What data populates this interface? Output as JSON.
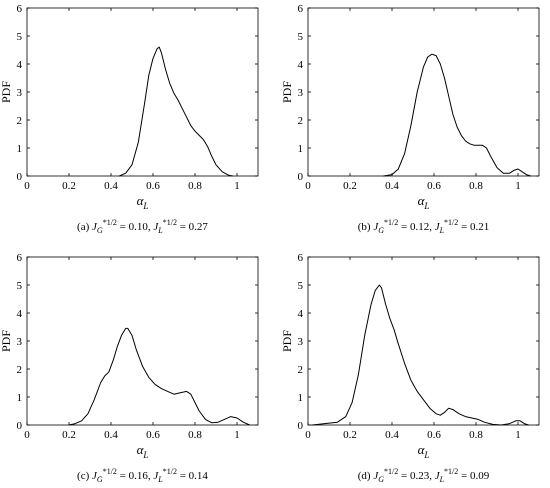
{
  "chart_data": [
    {
      "type": "line",
      "panel": "a",
      "caption": "(a)  J_G^{*1/2} = 0.10, J_L^{*1/2} = 0.27",
      "caption_parts": {
        "label": "(a)",
        "jg_value": "0.10",
        "jl_value": "0.27"
      },
      "xlabel": "α_L",
      "xlabel_main": "α",
      "xlabel_sub": "L",
      "ylabel": "PDF",
      "xlim": [
        0,
        1.1
      ],
      "ylim": [
        0,
        6
      ],
      "xticks": [
        0,
        0.2,
        0.4,
        0.6,
        0.8,
        1
      ],
      "yticks": [
        0,
        1,
        2,
        3,
        4,
        5,
        6
      ],
      "grid": false,
      "series": [
        {
          "x": [
            0.44,
            0.47,
            0.5,
            0.53,
            0.56,
            0.58,
            0.6,
            0.62,
            0.63,
            0.64,
            0.66,
            0.68,
            0.7,
            0.72,
            0.74,
            0.76,
            0.78,
            0.8,
            0.82,
            0.84,
            0.86,
            0.88,
            0.9,
            0.93,
            0.96,
            0.98
          ],
          "values": [
            0.0,
            0.1,
            0.4,
            1.2,
            2.6,
            3.6,
            4.2,
            4.55,
            4.6,
            4.4,
            3.8,
            3.3,
            2.95,
            2.7,
            2.4,
            2.1,
            1.8,
            1.6,
            1.45,
            1.3,
            1.05,
            0.7,
            0.4,
            0.15,
            0.03,
            0.0
          ]
        }
      ]
    },
    {
      "type": "line",
      "panel": "b",
      "caption": "(b)  J_G^{*1/2} = 0.12, J_L^{*1/2} = 0.21",
      "caption_parts": {
        "label": "(b)",
        "jg_value": "0.12",
        "jl_value": "0.21"
      },
      "xlabel": "α_L",
      "xlabel_main": "α",
      "xlabel_sub": "L",
      "ylabel": "PDF",
      "xlim": [
        0,
        1.1
      ],
      "ylim": [
        0,
        6
      ],
      "xticks": [
        0,
        0.2,
        0.4,
        0.6,
        0.8,
        1
      ],
      "yticks": [
        0,
        1,
        2,
        3,
        4,
        5,
        6
      ],
      "grid": false,
      "series": [
        {
          "x": [
            0.36,
            0.4,
            0.43,
            0.46,
            0.49,
            0.52,
            0.55,
            0.57,
            0.59,
            0.61,
            0.63,
            0.65,
            0.67,
            0.69,
            0.71,
            0.73,
            0.75,
            0.77,
            0.79,
            0.81,
            0.83,
            0.85,
            0.87,
            0.9,
            0.93,
            0.96,
            0.98,
            1.0,
            1.02,
            1.04,
            1.06
          ],
          "values": [
            0.0,
            0.05,
            0.25,
            0.8,
            1.8,
            3.0,
            3.9,
            4.25,
            4.35,
            4.3,
            4.0,
            3.5,
            2.85,
            2.2,
            1.75,
            1.45,
            1.25,
            1.15,
            1.1,
            1.1,
            1.1,
            1.0,
            0.7,
            0.3,
            0.1,
            0.1,
            0.2,
            0.25,
            0.15,
            0.05,
            0.0
          ]
        }
      ]
    },
    {
      "type": "line",
      "panel": "c",
      "caption": "(c)  J_G^{*1/2} = 0.16, J_L^{*1/2} = 0.14",
      "caption_parts": {
        "label": "(c)",
        "jg_value": "0.16",
        "jl_value": "0.14"
      },
      "xlabel": "α_L",
      "xlabel_main": "α",
      "xlabel_sub": "L",
      "ylabel": "PDF",
      "xlim": [
        0,
        1.1
      ],
      "ylim": [
        0,
        6
      ],
      "xticks": [
        0,
        0.2,
        0.4,
        0.6,
        0.8,
        1
      ],
      "yticks": [
        0,
        1,
        2,
        3,
        4,
        5,
        6
      ],
      "grid": false,
      "series": [
        {
          "x": [
            0.2,
            0.23,
            0.26,
            0.29,
            0.32,
            0.35,
            0.37,
            0.39,
            0.41,
            0.43,
            0.45,
            0.47,
            0.48,
            0.5,
            0.52,
            0.55,
            0.58,
            0.61,
            0.64,
            0.67,
            0.7,
            0.73,
            0.76,
            0.78,
            0.8,
            0.82,
            0.85,
            0.88,
            0.91,
            0.94,
            0.97,
            1.0,
            1.03,
            1.06
          ],
          "values": [
            0.0,
            0.05,
            0.15,
            0.4,
            0.9,
            1.5,
            1.75,
            1.9,
            2.3,
            2.8,
            3.2,
            3.45,
            3.45,
            3.2,
            2.7,
            2.1,
            1.7,
            1.45,
            1.3,
            1.2,
            1.1,
            1.15,
            1.2,
            1.1,
            0.8,
            0.5,
            0.2,
            0.08,
            0.1,
            0.2,
            0.3,
            0.25,
            0.1,
            0.0
          ]
        }
      ]
    },
    {
      "type": "line",
      "panel": "d",
      "caption": "(d)  J_G^{*1/2} = 0.23, J_L^{*1/2} = 0.09",
      "caption_parts": {
        "label": "(d)",
        "jg_value": "0.23",
        "jl_value": "0.09"
      },
      "xlabel": "α_L",
      "xlabel_main": "α",
      "xlabel_sub": "L",
      "ylabel": "PDF",
      "xlim": [
        0,
        1.1
      ],
      "ylim": [
        0,
        6
      ],
      "xticks": [
        0,
        0.2,
        0.4,
        0.6,
        0.8,
        1
      ],
      "yticks": [
        0,
        1,
        2,
        3,
        4,
        5,
        6
      ],
      "grid": false,
      "series": [
        {
          "x": [
            0.02,
            0.08,
            0.14,
            0.18,
            0.21,
            0.24,
            0.27,
            0.3,
            0.32,
            0.34,
            0.35,
            0.37,
            0.39,
            0.41,
            0.43,
            0.46,
            0.49,
            0.52,
            0.55,
            0.58,
            0.61,
            0.63,
            0.65,
            0.67,
            0.69,
            0.72,
            0.75,
            0.78,
            0.81,
            0.84,
            0.88,
            0.92,
            0.96,
            0.99,
            1.01,
            1.03,
            1.05
          ],
          "values": [
            0.0,
            0.05,
            0.1,
            0.3,
            0.8,
            1.8,
            3.2,
            4.3,
            4.8,
            5.0,
            4.9,
            4.3,
            3.8,
            3.4,
            2.9,
            2.2,
            1.6,
            1.2,
            0.9,
            0.6,
            0.4,
            0.35,
            0.45,
            0.6,
            0.55,
            0.4,
            0.3,
            0.25,
            0.2,
            0.1,
            0.02,
            0.0,
            0.05,
            0.15,
            0.15,
            0.05,
            0.0
          ]
        }
      ]
    }
  ]
}
